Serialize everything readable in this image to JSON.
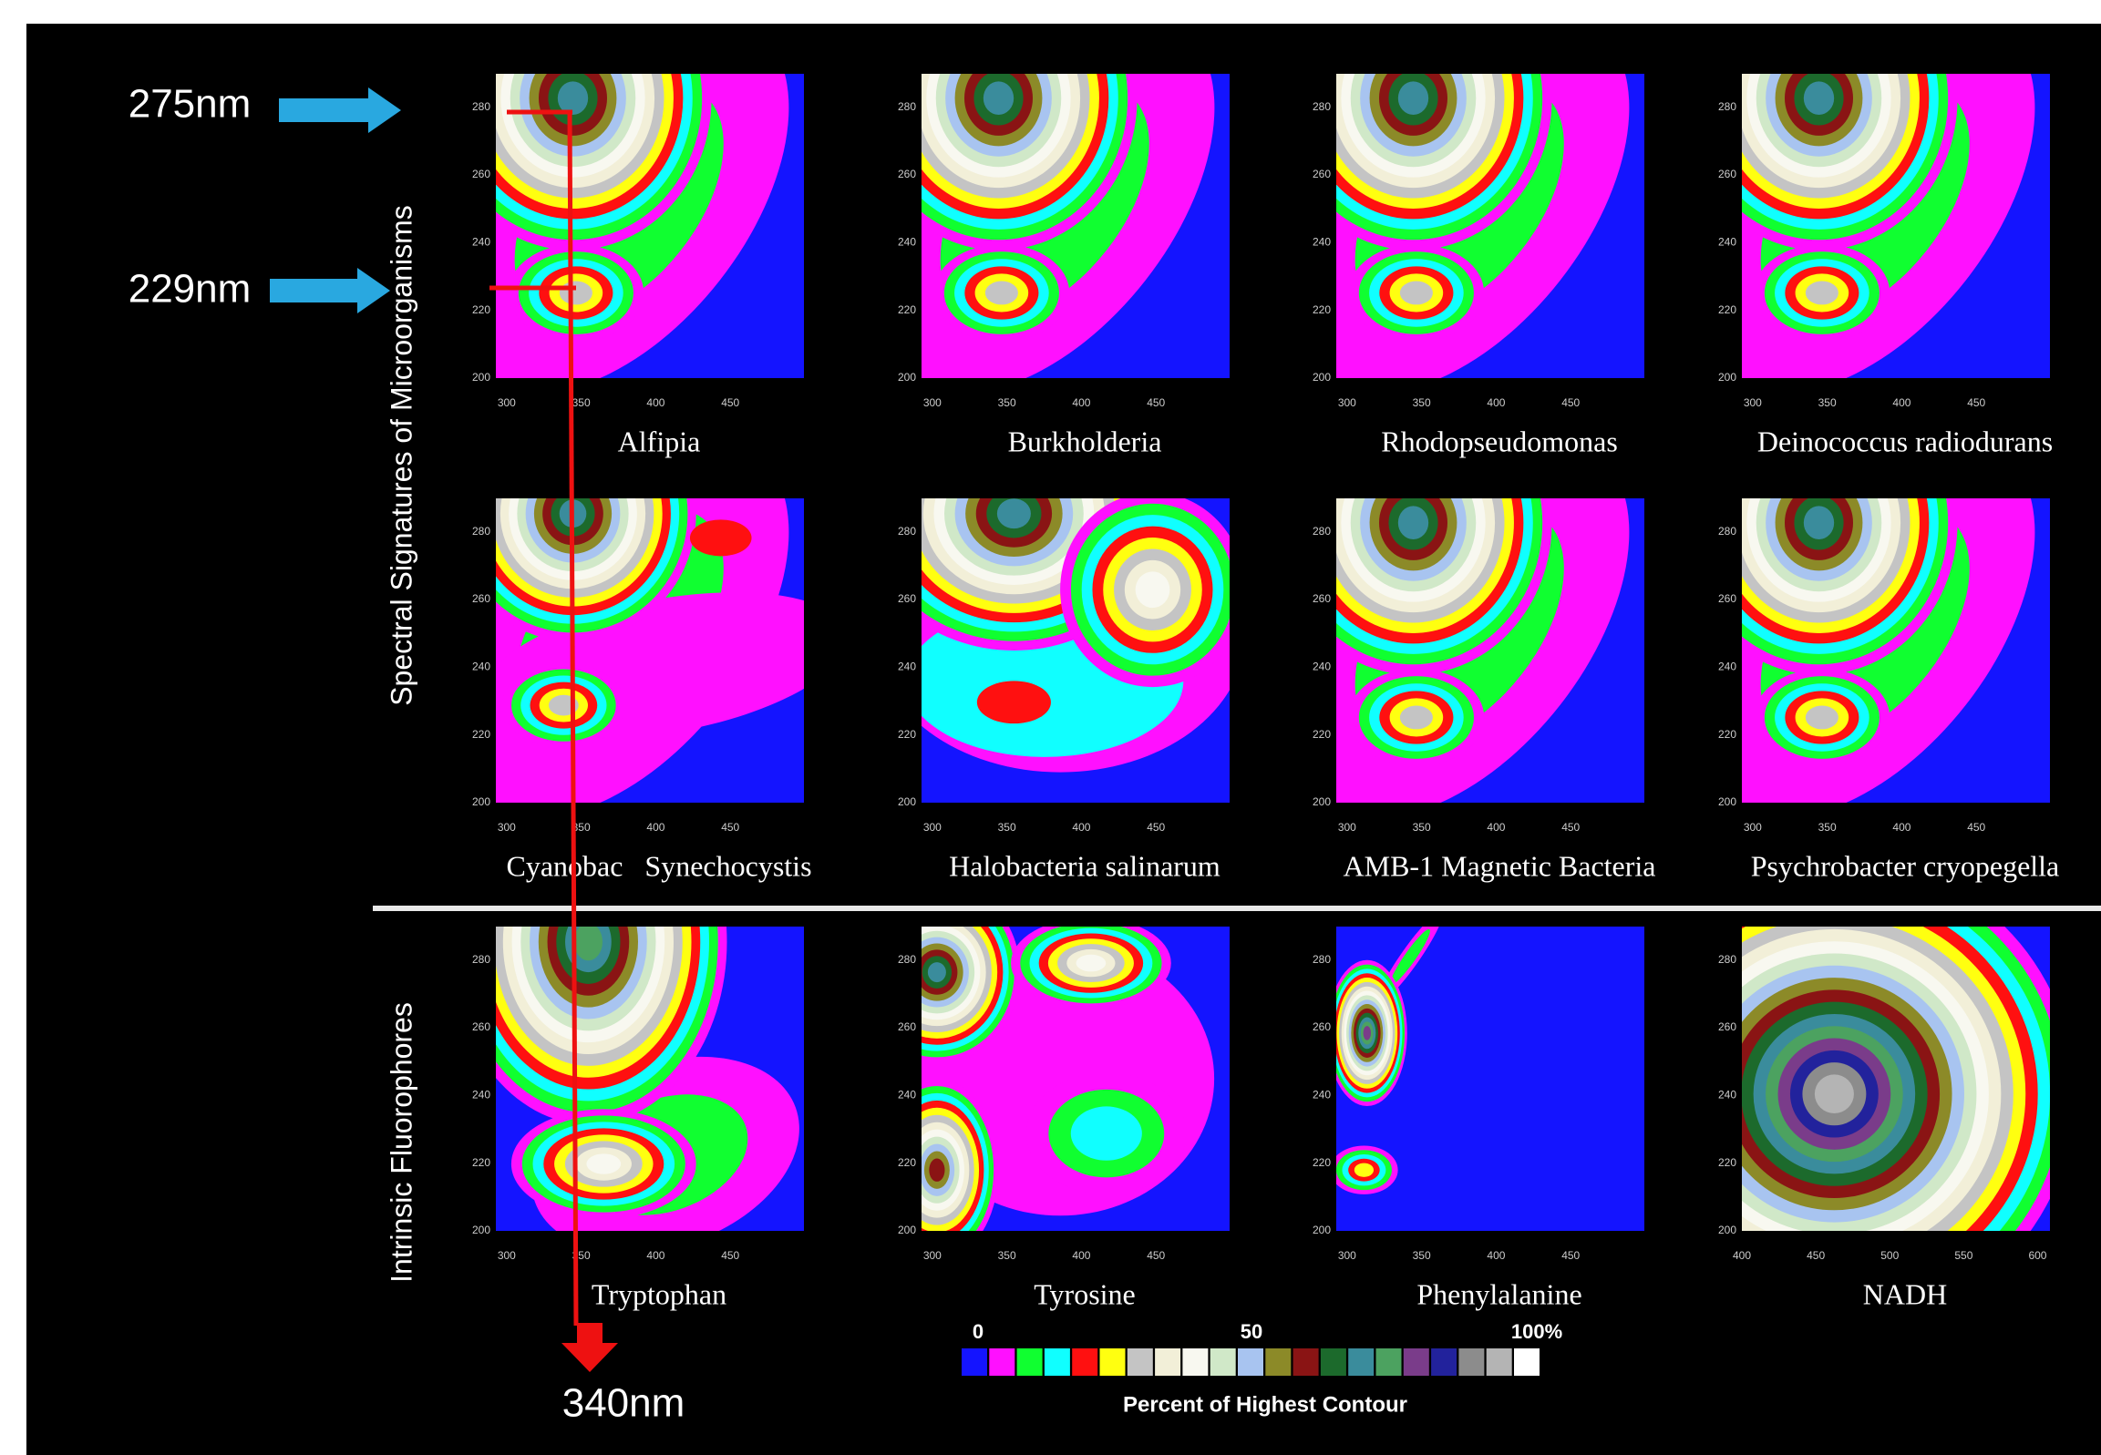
{
  "annotations": {
    "top_wavelength": "275nm",
    "mid_wavelength": "229nm",
    "emission_wavelength": "340nm"
  },
  "row_labels": [
    "Spectral Signatures of Microorganisms",
    "Intrinsic Fluorophores"
  ],
  "axis": {
    "xticks": [
      300,
      350,
      400,
      450
    ],
    "yticks": [
      280,
      260,
      240,
      220,
      200
    ]
  },
  "panels": [
    {
      "name": "Alfipia"
    },
    {
      "name": "Burkholderia"
    },
    {
      "name": "Rhodopseudomonas"
    },
    {
      "name": "Deinococcus radiodurans"
    },
    {
      "name": "Cyanobac   Synechocystis"
    },
    {
      "name": "Halobacteria salinarum"
    },
    {
      "name": "AMB-1 Magnetic Bacteria"
    },
    {
      "name": "Psychrobacter cryopegella"
    },
    {
      "name": "Tryptophan"
    },
    {
      "name": "Tyrosine"
    },
    {
      "name": "Phenylalanine"
    },
    {
      "name": "NADH",
      "xticks": [
        400,
        450,
        500,
        550,
        600
      ]
    }
  ],
  "legend": {
    "labels": [
      "0",
      "50",
      "100%"
    ],
    "title": "Percent of Highest Contour"
  }
}
